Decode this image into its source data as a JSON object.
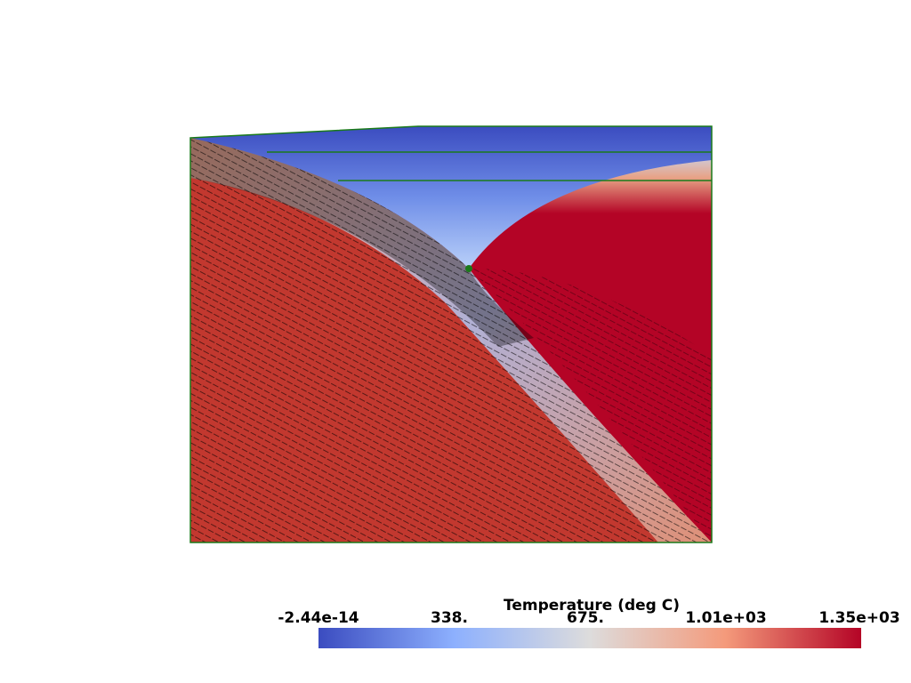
{
  "colorbar": {
    "title": "Temperature (deg C)",
    "ticks": [
      "-2.44e-14",
      "338.",
      "675.",
      "1.01e+03",
      "1.35e+03"
    ]
  }
}
